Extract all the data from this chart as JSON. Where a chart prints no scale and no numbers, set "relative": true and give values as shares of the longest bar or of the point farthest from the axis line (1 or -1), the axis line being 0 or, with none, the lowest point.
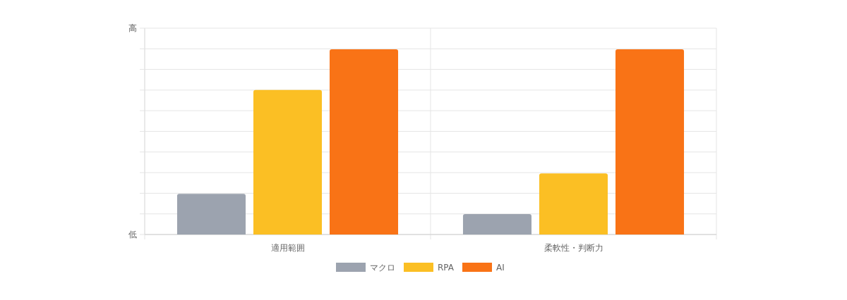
{
  "chart_data": {
    "type": "bar",
    "categories": [
      "適用範囲",
      "柔軟性・判断力"
    ],
    "series": [
      {
        "name": "マクロ",
        "color": "#9ca3af",
        "values": [
          0.22,
          0.11
        ]
      },
      {
        "name": "RPA",
        "color": "#fbbf24",
        "values": [
          0.78,
          0.33
        ]
      },
      {
        "name": "AI",
        "color": "#f97316",
        "values": [
          1,
          1
        ]
      }
    ],
    "relative": true,
    "annotations": [
      "高",
      "低"
    ],
    "grid": true,
    "legend": "bottom"
  }
}
